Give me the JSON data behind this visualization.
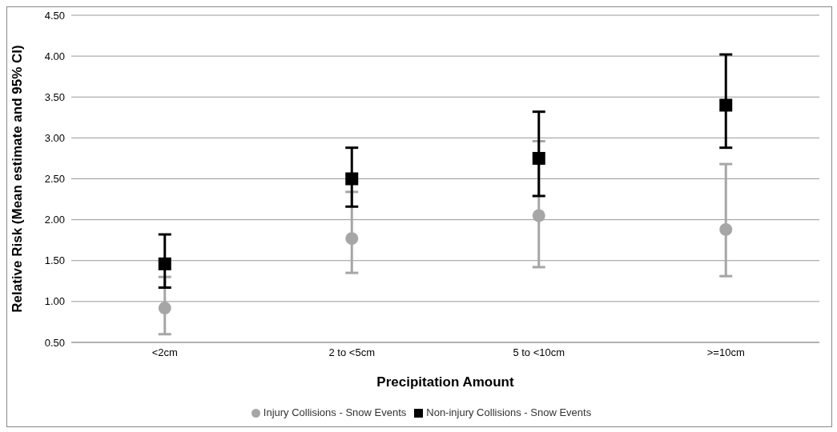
{
  "chart_data": {
    "type": "scatter",
    "xlabel": "Precipitation Amount",
    "ylabel": "Relative Risk (Mean estimate and 95% CI)",
    "categories": [
      "<2cm",
      "2 to <5cm",
      "5 to <10cm",
      ">=10cm"
    ],
    "series": [
      {
        "name": "Injury Collisions - Snow Events",
        "color": "#a6a6a6",
        "marker": "circle",
        "values": [
          0.92,
          1.77,
          2.05,
          1.88
        ],
        "errors": [
          [
            0.6,
            1.3
          ],
          [
            1.35,
            2.34
          ],
          [
            1.42,
            2.96
          ],
          [
            1.31,
            2.68
          ]
        ]
      },
      {
        "name": "Non-injury Collisions - Snow Events",
        "color": "#000000",
        "marker": "square",
        "values": [
          1.46,
          2.5,
          2.75,
          3.4
        ],
        "errors": [
          [
            1.17,
            1.82
          ],
          [
            2.16,
            2.88
          ],
          [
            2.29,
            3.32
          ],
          [
            2.88,
            4.02
          ]
        ]
      }
    ],
    "ylim": [
      0.5,
      4.5
    ],
    "yticks": [
      {
        "value": 0.5,
        "label": "0.50"
      },
      {
        "value": 1,
        "label": "1.00"
      },
      {
        "value": 1.5,
        "label": "1.50"
      },
      {
        "value": 2,
        "label": "2.00"
      },
      {
        "value": 2.5,
        "label": "2.50"
      },
      {
        "value": 3,
        "label": "3.00"
      },
      {
        "value": 3.5,
        "label": "3.50"
      },
      {
        "value": 4,
        "label": "4.00"
      },
      {
        "value": 4.5,
        "label": "4.50"
      }
    ],
    "grid": "y",
    "legend": "bottom"
  }
}
